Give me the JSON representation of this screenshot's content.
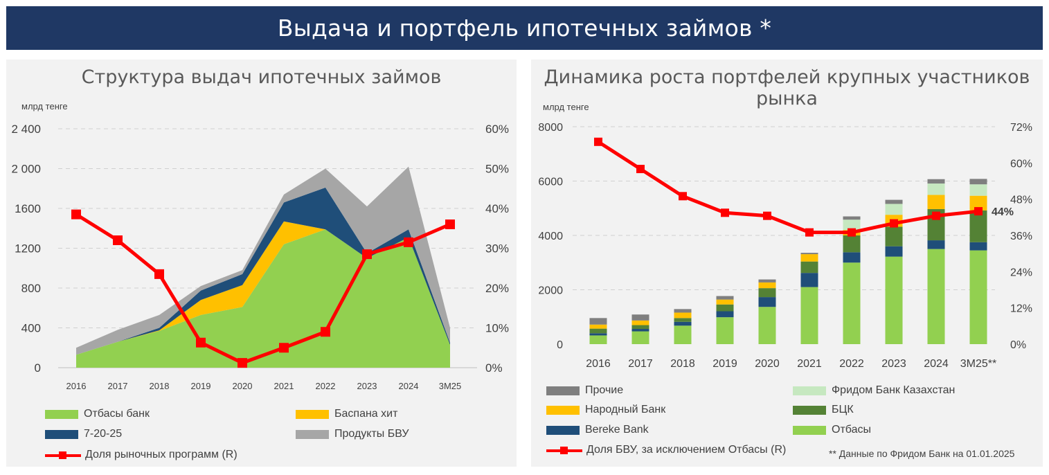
{
  "header": {
    "title": "Выдача и портфель ипотечных займов *"
  },
  "left_panel": {
    "title": "Структура выдач ипотечных займов",
    "unit": "млрд тенге",
    "legend": [
      {
        "label": "Отбасы банк",
        "color": "#92d050",
        "kind": "area"
      },
      {
        "label": "Баспана хит",
        "color": "#ffc000",
        "kind": "area"
      },
      {
        "label": "7-20-25",
        "color": "#1f4e79",
        "kind": "area"
      },
      {
        "label": "Продукты БВУ",
        "color": "#a6a6a6",
        "kind": "area"
      },
      {
        "label": "Доля рыночных программ (R)",
        "color": "#ff0000",
        "kind": "line"
      }
    ]
  },
  "right_panel": {
    "title": "Динамика роста портфелей крупных участников рынка",
    "unit": "млрд тенге",
    "legend": [
      {
        "label": "Прочие",
        "color": "#7f7f7f",
        "kind": "bar"
      },
      {
        "label": "Фридом Банк Казахстан",
        "color": "#c6e8c0",
        "kind": "bar"
      },
      {
        "label": "Народный Банк",
        "color": "#ffc000",
        "kind": "bar"
      },
      {
        "label": "БЦК",
        "color": "#548235",
        "kind": "bar"
      },
      {
        "label": "Bereke Bank",
        "color": "#1f4e79",
        "kind": "bar"
      },
      {
        "label": "Отбасы",
        "color": "#92d050",
        "kind": "bar"
      },
      {
        "label": "Доля  БВУ, за исключением Отбасы (R)",
        "color": "#ff0000",
        "kind": "line"
      }
    ],
    "footnote": "** Данные по Фридом Банк на 01.01.2025"
  },
  "chart_data": [
    {
      "type": "area",
      "title": "Структура выдач ипотечных займов",
      "ylabel": "млрд тенге",
      "categories": [
        "2016",
        "2017",
        "2018",
        "2019",
        "2020",
        "2021",
        "2022",
        "2023",
        "2024",
        "3М25"
      ],
      "ylim": [
        0,
        2400
      ],
      "yticks": [
        "0",
        "400",
        "800",
        "1200",
        "1600",
        "2 000",
        "2 400"
      ],
      "y2lim": [
        0,
        60
      ],
      "y2ticks": [
        "0%",
        "10%",
        "20%",
        "30%",
        "40%",
        "50%",
        "60%"
      ],
      "series": [
        {
          "name": "Отбасы банк",
          "color": "#92d050",
          "values": [
            130,
            260,
            370,
            530,
            610,
            1240,
            1390,
            1100,
            1310,
            230
          ]
        },
        {
          "name": "Баспана хит",
          "color": "#ffc000",
          "values": [
            0,
            0,
            5,
            150,
            220,
            230,
            0,
            0,
            0,
            0
          ]
        },
        {
          "name": "7-20-25",
          "color": "#1f4e79",
          "values": [
            0,
            0,
            25,
            95,
            110,
            190,
            420,
            50,
            80,
            20
          ]
        },
        {
          "name": "Продукты БВУ",
          "color": "#a6a6a6",
          "values": [
            70,
            120,
            130,
            45,
            40,
            80,
            190,
            470,
            630,
            150
          ]
        }
      ],
      "line": {
        "name": "Доля рыночных программ (R)",
        "color": "#ff0000",
        "axis": "right",
        "values": [
          38.5,
          32,
          23.5,
          6.3,
          1.2,
          5,
          9,
          28.5,
          31.5,
          36
        ]
      }
    },
    {
      "type": "bar",
      "stacked": true,
      "title": "Динамика роста портфелей крупных участников рынка",
      "ylabel": "млрд тенге",
      "categories": [
        "2016",
        "2017",
        "2018",
        "2019",
        "2020",
        "2021",
        "2022",
        "2023",
        "2024",
        "3М25**"
      ],
      "ylim": [
        0,
        8000
      ],
      "yticks": [
        "0",
        "2000",
        "4000",
        "6000",
        "8000"
      ],
      "y2lim": [
        0,
        72
      ],
      "y2ticks": [
        "0%",
        "12%",
        "24%",
        "36%",
        "48%",
        "60%",
        "72%"
      ],
      "series": [
        {
          "name": "Отбасы",
          "color": "#92d050",
          "values": [
            320,
            470,
            680,
            990,
            1370,
            2100,
            3000,
            3220,
            3500,
            3450
          ]
        },
        {
          "name": "Bereke Bank",
          "color": "#1f4e79",
          "values": [
            80,
            90,
            140,
            220,
            360,
            520,
            380,
            380,
            320,
            300
          ]
        },
        {
          "name": "БЦК",
          "color": "#548235",
          "values": [
            170,
            140,
            140,
            250,
            330,
            420,
            620,
            720,
            1150,
            1170
          ]
        },
        {
          "name": "Народный Банк",
          "color": "#ffc000",
          "values": [
            150,
            170,
            200,
            180,
            210,
            270,
            200,
            440,
            520,
            540
          ]
        },
        {
          "name": "Фридом Банк Казахстан",
          "color": "#c6e8c0",
          "values": [
            0,
            0,
            0,
            0,
            0,
            0,
            380,
            400,
            420,
            420
          ]
        },
        {
          "name": "Прочие",
          "color": "#7f7f7f",
          "values": [
            240,
            220,
            130,
            130,
            110,
            50,
            120,
            150,
            160,
            200
          ]
        }
      ],
      "line": {
        "name": "Доля  БВУ, за исключением Отбасы (R)",
        "color": "#ff0000",
        "axis": "right",
        "values": [
          67,
          58,
          49,
          43.5,
          42.5,
          37,
          37,
          40,
          42.5,
          44
        ]
      },
      "annotations": [
        "44%"
      ]
    }
  ]
}
